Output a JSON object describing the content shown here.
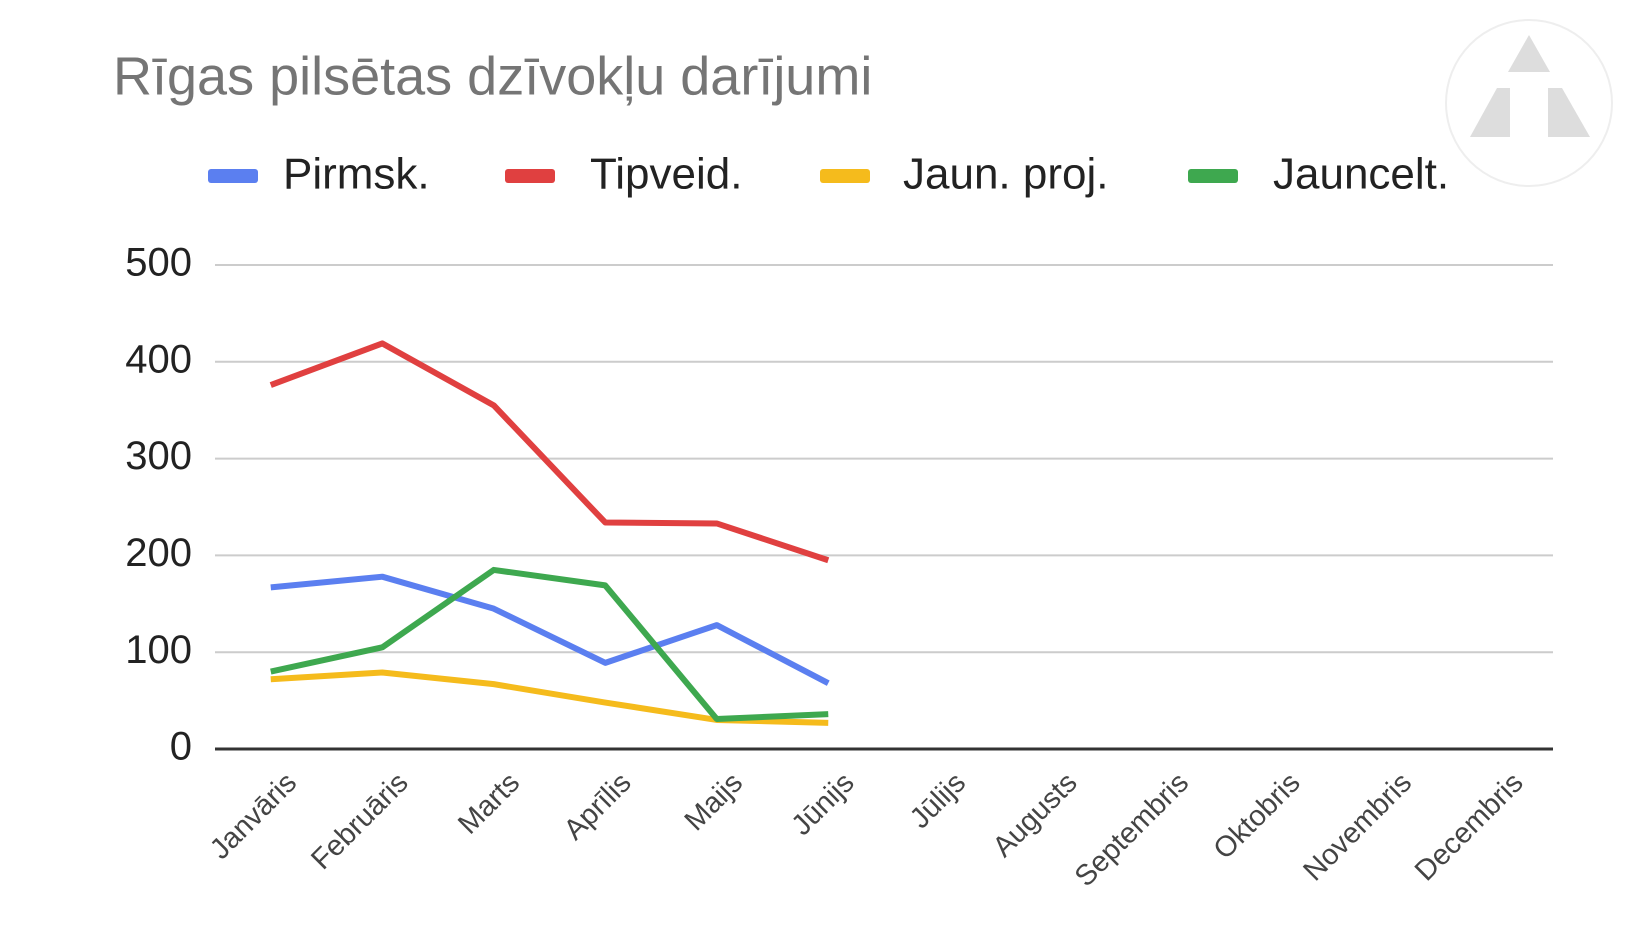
{
  "chart_data": {
    "type": "line",
    "title": "Rīgas pilsētas dzīvokļu darījumi",
    "categories": [
      "Janvāris",
      "Februāris",
      "Marts",
      "Aprīlis",
      "Maijs",
      "Jūnijs",
      "Jūlijs",
      "Augusts",
      "Septembris",
      "Oktobris",
      "Novembris",
      "Decembris"
    ],
    "series": [
      {
        "name": "Pirmsk.",
        "color": "#5b7ff0",
        "values": [
          167,
          178,
          145,
          89,
          128,
          68,
          null,
          null,
          null,
          null,
          null,
          null
        ]
      },
      {
        "name": "Tipveid.",
        "color": "#e04040",
        "values": [
          376,
          419,
          355,
          234,
          233,
          195,
          null,
          null,
          null,
          null,
          null,
          null
        ]
      },
      {
        "name": "Jaun. proj.",
        "color": "#f5bb1c",
        "values": [
          72,
          79,
          67,
          48,
          30,
          27,
          null,
          null,
          null,
          null,
          null,
          null
        ]
      },
      {
        "name": "Jauncelt.",
        "color": "#3ea84f",
        "values": [
          80,
          105,
          185,
          169,
          31,
          36,
          null,
          null,
          null,
          null,
          null,
          null
        ]
      }
    ],
    "ylim": [
      0,
      500
    ],
    "yticks": [
      0,
      100,
      200,
      300,
      400,
      500
    ],
    "grid": true,
    "legend": "top"
  }
}
